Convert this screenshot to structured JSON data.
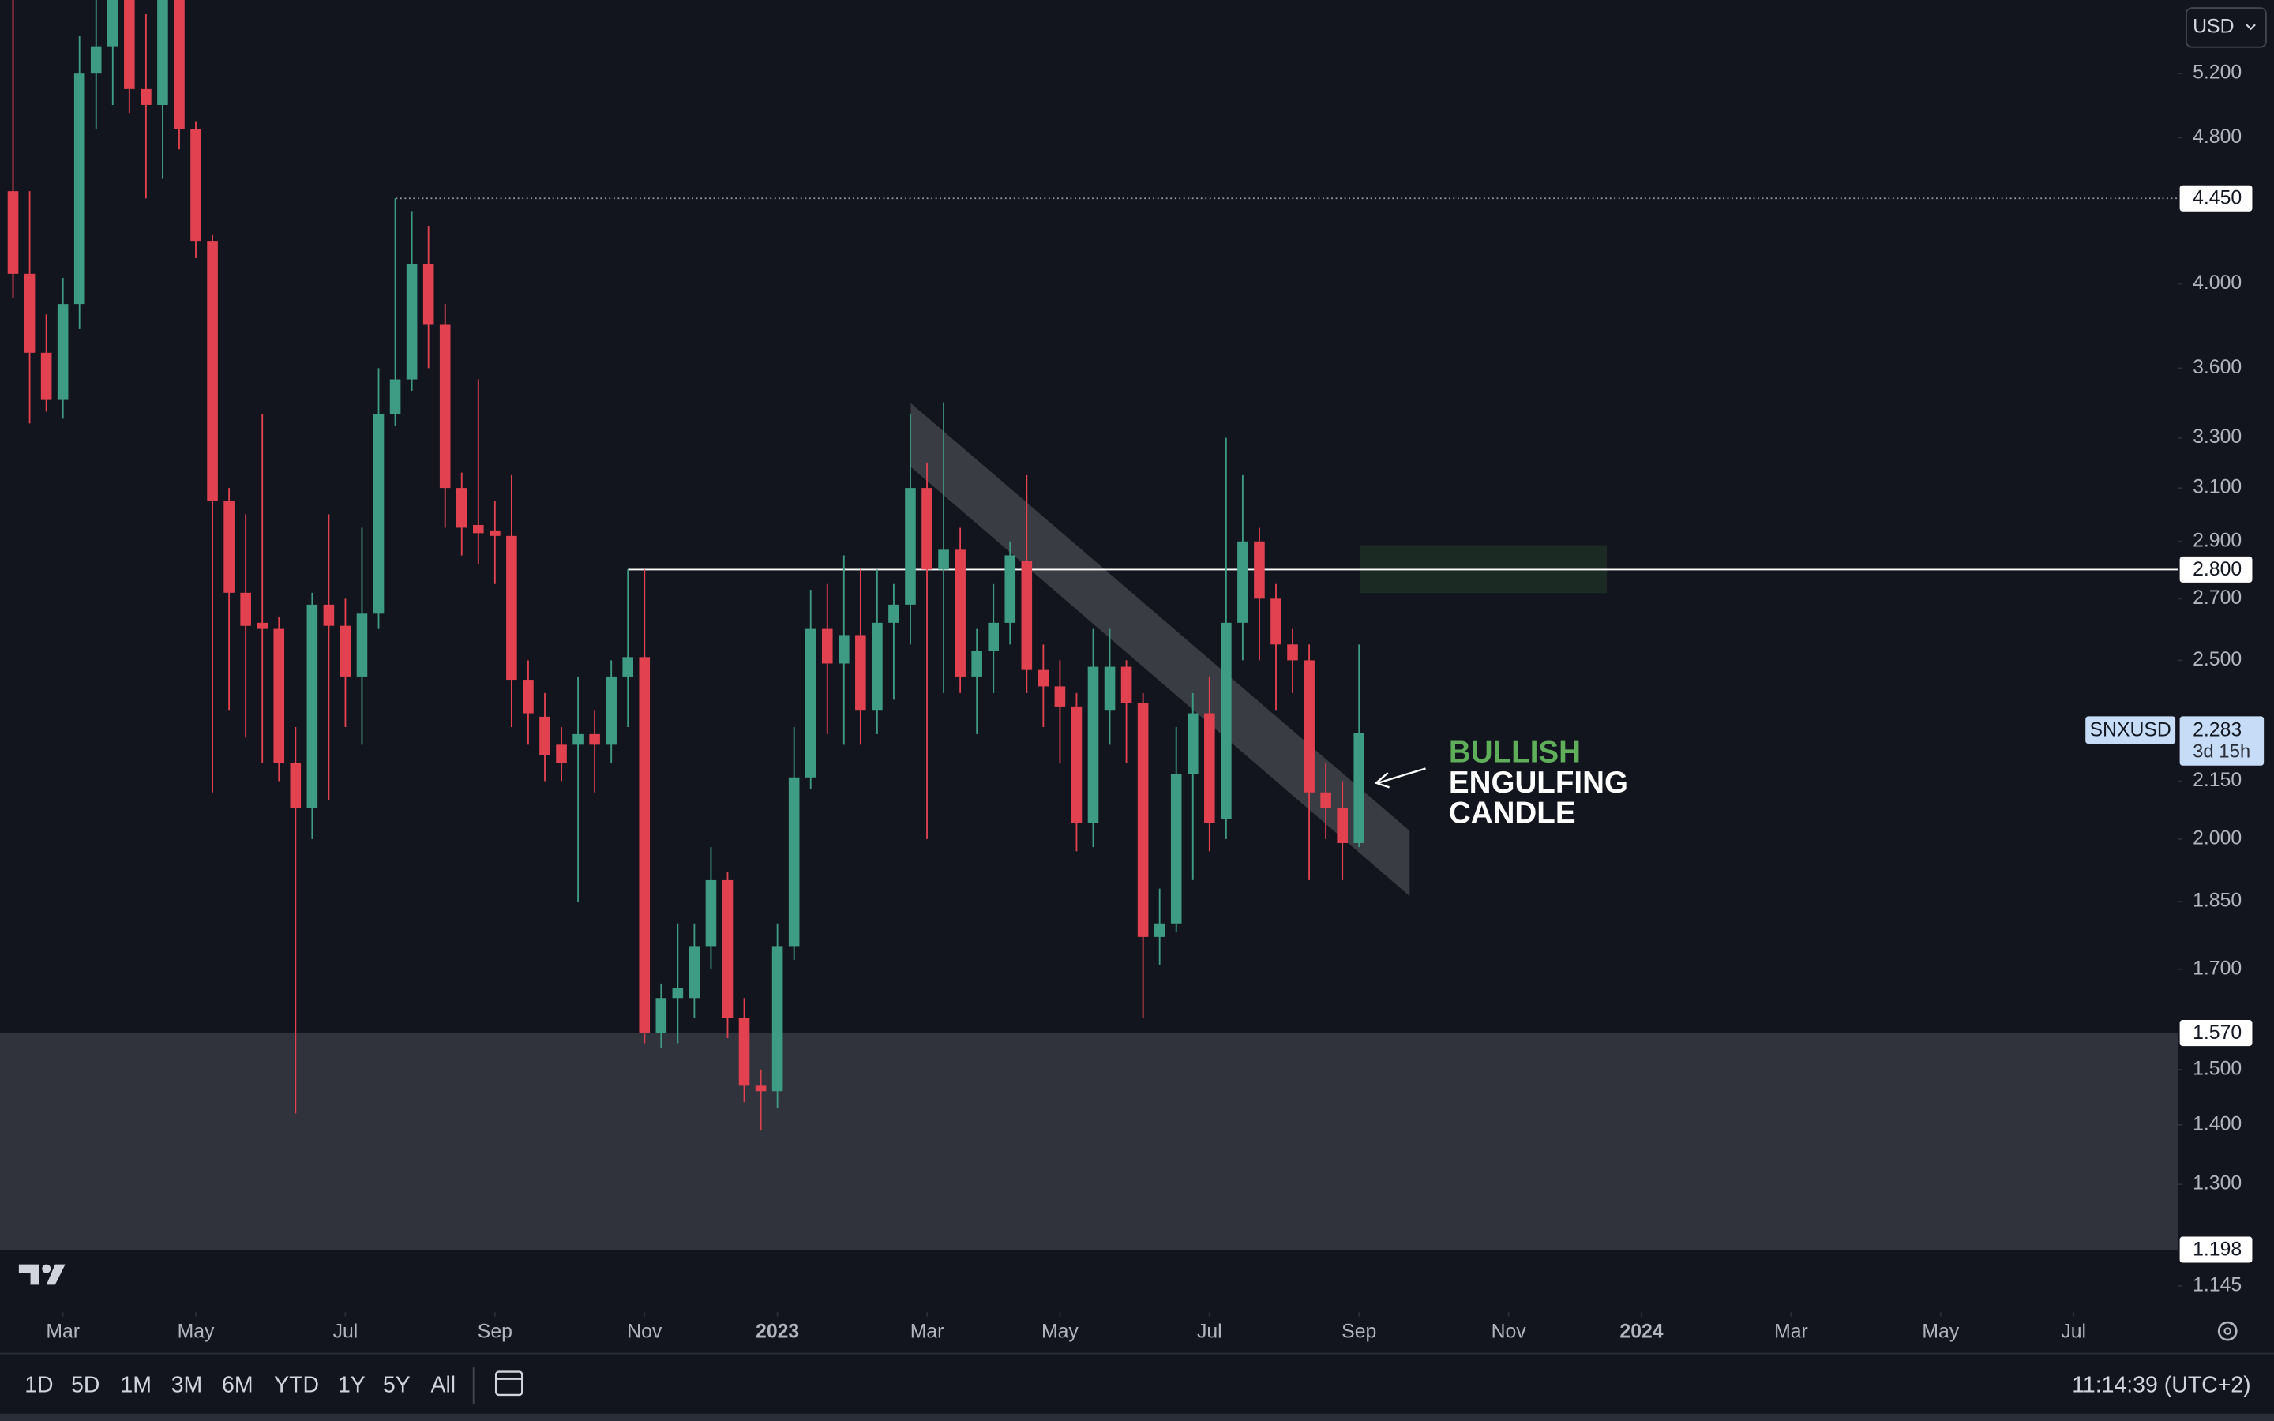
{
  "chart_data": {
    "type": "candlestick",
    "currency": "USD",
    "symbol": "SNXUSD",
    "countdown": "3d 15h",
    "up_color": "#3e9c85",
    "down_color": "#e2424f",
    "log_scale": true,
    "ylim": [
      1.11,
      5.7
    ],
    "yticks": [
      {
        "value": 5.2,
        "label": "5.200"
      },
      {
        "value": 4.8,
        "label": "4.800"
      },
      {
        "value": 4.0,
        "label": "4.000"
      },
      {
        "value": 3.6,
        "label": "3.600"
      },
      {
        "value": 3.3,
        "label": "3.300"
      },
      {
        "value": 3.1,
        "label": "3.100"
      },
      {
        "value": 2.9,
        "label": "2.900"
      },
      {
        "value": 2.7,
        "label": "2.700"
      },
      {
        "value": 2.5,
        "label": "2.500"
      },
      {
        "value": 2.15,
        "label": "2.150"
      },
      {
        "value": 2.0,
        "label": "2.000"
      },
      {
        "value": 1.85,
        "label": "1.850"
      },
      {
        "value": 1.7,
        "label": "1.700"
      },
      {
        "value": 1.5,
        "label": "1.500"
      },
      {
        "value": 1.4,
        "label": "1.400"
      },
      {
        "value": 1.3,
        "label": "1.300"
      },
      1.145
    ],
    "xlim": [
      -0.785,
      130.3
    ],
    "xticks": [
      {
        "value": 3,
        "label": "Mar"
      },
      {
        "value": 11,
        "label": "May"
      },
      {
        "value": 20,
        "label": "Jul"
      },
      {
        "value": 29,
        "label": "Sep"
      },
      {
        "value": 38,
        "label": "Nov"
      },
      {
        "value": 46,
        "label": "2023"
      },
      {
        "value": 55,
        "label": "Mar"
      },
      {
        "value": 63,
        "label": "May"
      },
      {
        "value": 72,
        "label": "Jul"
      },
      {
        "value": 81,
        "label": "Sep"
      },
      {
        "value": 90,
        "label": "Nov"
      },
      {
        "value": 98,
        "label": "2024"
      },
      {
        "value": 107,
        "label": "Mar"
      },
      {
        "value": 116,
        "label": "May"
      },
      {
        "value": 124,
        "label": "Jul"
      }
    ],
    "open": [
      4.49,
      4.05,
      3.67,
      3.46,
      3.9,
      5.2,
      5.38,
      5.75,
      5.1,
      5.0,
      5.8,
      4.85,
      4.22,
      3.05,
      2.72,
      2.62,
      2.6,
      2.2,
      2.08,
      2.68,
      2.61,
      2.45,
      2.65,
      3.4,
      3.55,
      4.1,
      3.8,
      3.1,
      2.96,
      2.94,
      2.92,
      2.44,
      2.33,
      2.25,
      2.25,
      2.28,
      2.25,
      2.45,
      2.51,
      1.57,
      1.64,
      1.64,
      1.75,
      1.9,
      1.6,
      1.47,
      1.46,
      1.75,
      2.16,
      2.6,
      2.49,
      2.58,
      2.35,
      2.62,
      2.68,
      3.1,
      2.8,
      2.87,
      2.45,
      2.53,
      2.62,
      2.83,
      2.47,
      2.42,
      2.36,
      2.04,
      2.35,
      2.48,
      2.37,
      1.77,
      1.8,
      2.17,
      2.34,
      2.05,
      2.62,
      2.9,
      2.7,
      2.55,
      2.5,
      2.12,
      2.08,
      1.99
    ],
    "high": [
      5.9,
      4.49,
      3.85,
      4.03,
      5.45,
      5.9,
      5.9,
      5.9,
      5.6,
      5.9,
      5.9,
      4.9,
      4.25,
      3.1,
      3.0,
      3.4,
      2.64,
      2.3,
      2.72,
      3.0,
      2.7,
      2.95,
      3.6,
      4.45,
      4.38,
      4.3,
      3.9,
      3.16,
      3.55,
      3.05,
      3.15,
      2.5,
      2.4,
      2.3,
      2.45,
      2.35,
      2.5,
      2.8,
      2.8,
      1.67,
      1.8,
      1.8,
      1.98,
      1.92,
      1.64,
      1.5,
      1.8,
      2.3,
      2.73,
      2.75,
      2.85,
      2.8,
      2.8,
      2.75,
      3.4,
      3.2,
      3.45,
      2.95,
      2.6,
      2.75,
      2.9,
      3.15,
      2.55,
      2.5,
      2.4,
      2.6,
      2.6,
      2.5,
      2.4,
      1.88,
      2.3,
      2.4,
      2.45,
      3.3,
      3.15,
      2.95,
      2.75,
      2.6,
      2.55,
      2.2,
      2.15,
      2.55
    ],
    "low": [
      3.93,
      3.36,
      3.41,
      3.38,
      3.78,
      4.85,
      5.0,
      4.95,
      4.45,
      4.56,
      4.73,
      4.13,
      2.12,
      2.35,
      2.27,
      2.2,
      2.15,
      1.42,
      2.0,
      2.1,
      2.3,
      2.25,
      2.6,
      3.35,
      3.5,
      3.6,
      2.95,
      2.85,
      2.82,
      2.75,
      2.3,
      2.25,
      2.15,
      2.15,
      1.85,
      2.12,
      2.2,
      2.3,
      1.55,
      1.54,
      1.55,
      1.6,
      1.7,
      1.56,
      1.44,
      1.39,
      1.43,
      1.72,
      2.13,
      2.28,
      2.25,
      2.25,
      2.28,
      2.38,
      2.55,
      2.0,
      2.4,
      2.4,
      2.28,
      2.4,
      2.55,
      2.4,
      2.3,
      2.2,
      1.97,
      1.98,
      2.25,
      2.2,
      1.6,
      1.71,
      1.78,
      1.9,
      1.97,
      2.0,
      2.5,
      2.5,
      2.35,
      2.4,
      1.9,
      2.0,
      1.9,
      1.98
    ],
    "close": [
      4.05,
      3.67,
      3.46,
      3.9,
      5.2,
      5.38,
      5.75,
      5.1,
      5.0,
      5.8,
      4.85,
      4.22,
      3.05,
      2.72,
      2.61,
      2.6,
      2.2,
      2.08,
      2.68,
      2.61,
      2.45,
      2.65,
      3.4,
      3.55,
      4.1,
      3.8,
      3.1,
      2.95,
      2.93,
      2.92,
      2.44,
      2.34,
      2.22,
      2.2,
      2.28,
      2.25,
      2.45,
      2.51,
      1.57,
      1.64,
      1.66,
      1.75,
      1.9,
      1.6,
      1.47,
      1.46,
      1.75,
      2.16,
      2.6,
      2.49,
      2.58,
      2.35,
      2.62,
      2.68,
      3.1,
      2.8,
      2.87,
      2.45,
      2.53,
      2.62,
      2.85,
      2.47,
      2.42,
      2.36,
      2.04,
      2.48,
      2.48,
      2.37,
      1.77,
      1.8,
      2.17,
      2.34,
      2.04,
      2.62,
      2.9,
      2.7,
      2.55,
      2.5,
      2.12,
      2.08,
      1.99,
      2.283
    ],
    "levels": [
      {
        "value": 4.45,
        "label": "4.450",
        "style": "dotted"
      },
      {
        "value": 2.8,
        "label": "2.800",
        "style": "solid"
      }
    ],
    "zone": [
      {
        "value": 1.57,
        "label": "1.570"
      },
      {
        "value": 1.198,
        "label": "1.198"
      }
    ],
    "annotation": {
      "lines": [
        "BULLISH",
        "ENGULFING",
        "CANDLE"
      ],
      "colors": [
        "#5fae5a",
        "#ffffff",
        "#ffffff"
      ]
    }
  },
  "toolbar": {
    "ranges": [
      "1D",
      "5D",
      "1M",
      "3M",
      "6M",
      "YTD",
      "1Y",
      "5Y",
      "All"
    ],
    "clock": "11:14:39 (UTC+2)"
  }
}
